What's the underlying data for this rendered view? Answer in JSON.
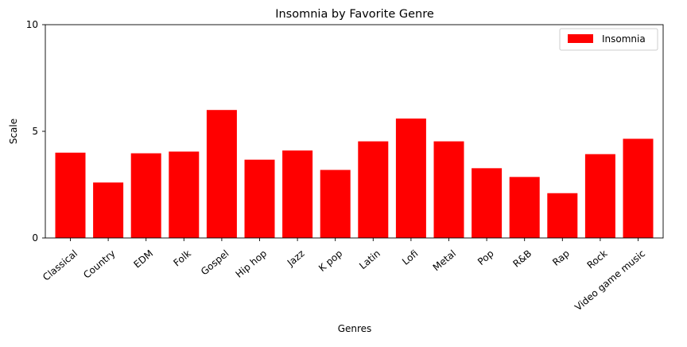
{
  "chart_data": {
    "type": "bar",
    "title": "Insomnia by Favorite Genre",
    "xlabel": "Genres",
    "ylabel": "Scale",
    "ylim": [
      0,
      10
    ],
    "yticks": [
      0,
      5,
      10
    ],
    "categories": [
      "Classical",
      "Country",
      "EDM",
      "Folk",
      "Gospel",
      "Hip hop",
      "Jazz",
      "K pop",
      "Latin",
      "Lofi",
      "Metal",
      "Pop",
      "R&B",
      "Rap",
      "Rock",
      "Video game music"
    ],
    "series": [
      {
        "name": "Insomnia",
        "color": "#ff0000",
        "values": [
          4.0,
          2.6,
          3.97,
          4.05,
          6.0,
          3.67,
          4.1,
          3.19,
          4.53,
          5.6,
          4.53,
          3.27,
          2.86,
          2.1,
          3.93,
          4.65
        ]
      }
    ],
    "legend": {
      "position": "top-right"
    },
    "grid": false,
    "x_tick_rotation": -40
  }
}
